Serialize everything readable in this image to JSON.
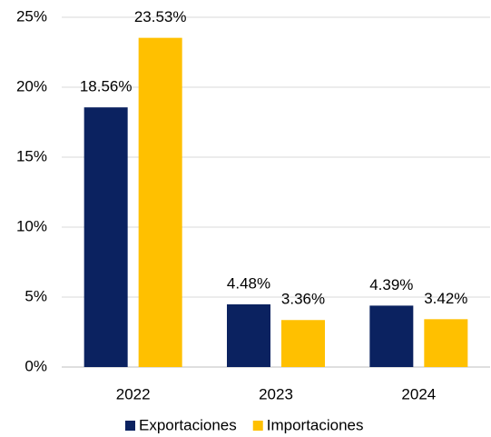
{
  "chart_data": {
    "type": "bar",
    "categories": [
      "2022",
      "2023",
      "2024"
    ],
    "series": [
      {
        "name": "Exportaciones",
        "color": "#0b2260",
        "values": [
          18.56,
          4.48,
          4.39
        ],
        "value_labels": [
          "18.56%",
          "4.48%",
          "4.39%"
        ]
      },
      {
        "name": "Importaciones",
        "color": "#ffc000",
        "values": [
          23.53,
          3.36,
          3.42
        ],
        "value_labels": [
          "23.53%",
          "3.36%",
          "3.42%"
        ]
      }
    ],
    "ylim": [
      0,
      25
    ],
    "yticks": [
      {
        "value": 0,
        "label": "0%"
      },
      {
        "value": 5,
        "label": "5%"
      },
      {
        "value": 10,
        "label": "10%"
      },
      {
        "value": 15,
        "label": "15%"
      },
      {
        "value": 20,
        "label": "20%"
      },
      {
        "value": 25,
        "label": "25%"
      }
    ],
    "grid": true,
    "legend": "bottom"
  }
}
